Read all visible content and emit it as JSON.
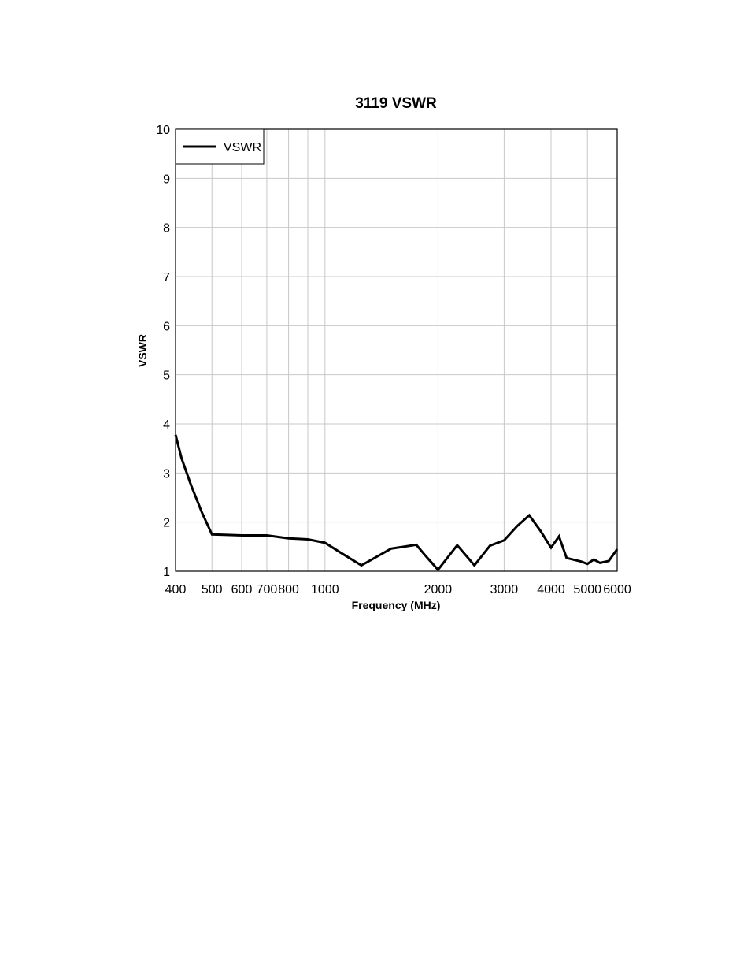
{
  "chart_data": {
    "type": "line",
    "title": "3119 VSWR",
    "xlabel": "Frequency (MHz)",
    "ylabel": "VSWR",
    "x_scale": "log",
    "xlim": [
      400,
      6000
    ],
    "ylim": [
      1,
      10
    ],
    "x_ticks": [
      400,
      500,
      600,
      700,
      800,
      1000,
      2000,
      3000,
      4000,
      5000,
      6000
    ],
    "x_tick_labels": [
      "400",
      "500",
      "600",
      "700",
      "800",
      "1000",
      "2000",
      "3000",
      "4000",
      "5000",
      "6000"
    ],
    "y_ticks": [
      1,
      2,
      3,
      4,
      5,
      6,
      7,
      8,
      9,
      10
    ],
    "y_tick_labels": [
      "1",
      "2",
      "3",
      "4",
      "5",
      "6",
      "7",
      "8",
      "9",
      "10"
    ],
    "x_gridlines": [
      500,
      600,
      700,
      800,
      900,
      1000,
      2000,
      3000,
      4000,
      5000
    ],
    "grid": true,
    "legend": {
      "position": "top-left",
      "entries": [
        "VSWR"
      ]
    },
    "series": [
      {
        "name": "VSWR",
        "color": "#000000",
        "x": [
          400,
          415,
          440,
          470,
          500,
          550,
          600,
          700,
          800,
          900,
          1000,
          1100,
          1250,
          1500,
          1750,
          1850,
          2000,
          2250,
          2500,
          2750,
          3000,
          3250,
          3500,
          3750,
          4000,
          4200,
          4400,
          4800,
          5000,
          5200,
          5400,
          5700,
          6000
        ],
        "y": [
          3.78,
          3.3,
          2.75,
          2.2,
          1.75,
          1.74,
          1.73,
          1.73,
          1.67,
          1.65,
          1.58,
          1.38,
          1.12,
          1.46,
          1.54,
          1.32,
          1.03,
          1.53,
          1.12,
          1.52,
          1.63,
          1.92,
          2.14,
          1.82,
          1.48,
          1.71,
          1.27,
          1.2,
          1.15,
          1.24,
          1.17,
          1.21,
          1.45
        ]
      }
    ]
  }
}
